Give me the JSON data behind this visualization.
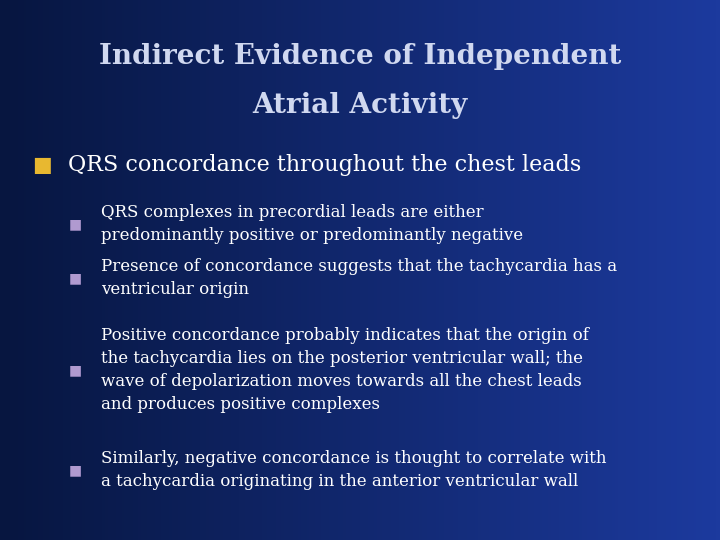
{
  "title_line1": "Indirect Evidence of Independent",
  "title_line2": "Atrial Activity",
  "bg_color_left": "#071640",
  "bg_color_right": "#1c3a9e",
  "title_color": "#d0d8f0",
  "bullet1_color": "#e8b830",
  "bullet2_color": "#b09ad0",
  "text_color": "#ffffff",
  "main_bullet": "QRS concordance throughout the chest leads",
  "sub_bullets": [
    "QRS complexes in precordial leads are either\npredominantly positive or predominantly negative",
    "Presence of concordance suggests that the tachycardia has a\nventricular origin",
    "Positive concordance probably indicates that the origin of\nthe tachycardia lies on the posterior ventricular wall; the\nwave of depolarization moves towards all the chest leads\nand produces positive complexes",
    "Similarly, negative concordance is thought to correlate with\na tachycardia originating in the anterior ventricular wall"
  ],
  "title_fontsize": 20,
  "main_bullet_fontsize": 16,
  "sub_bullet_fontsize": 12,
  "fig_width": 7.2,
  "fig_height": 5.4,
  "dpi": 100
}
